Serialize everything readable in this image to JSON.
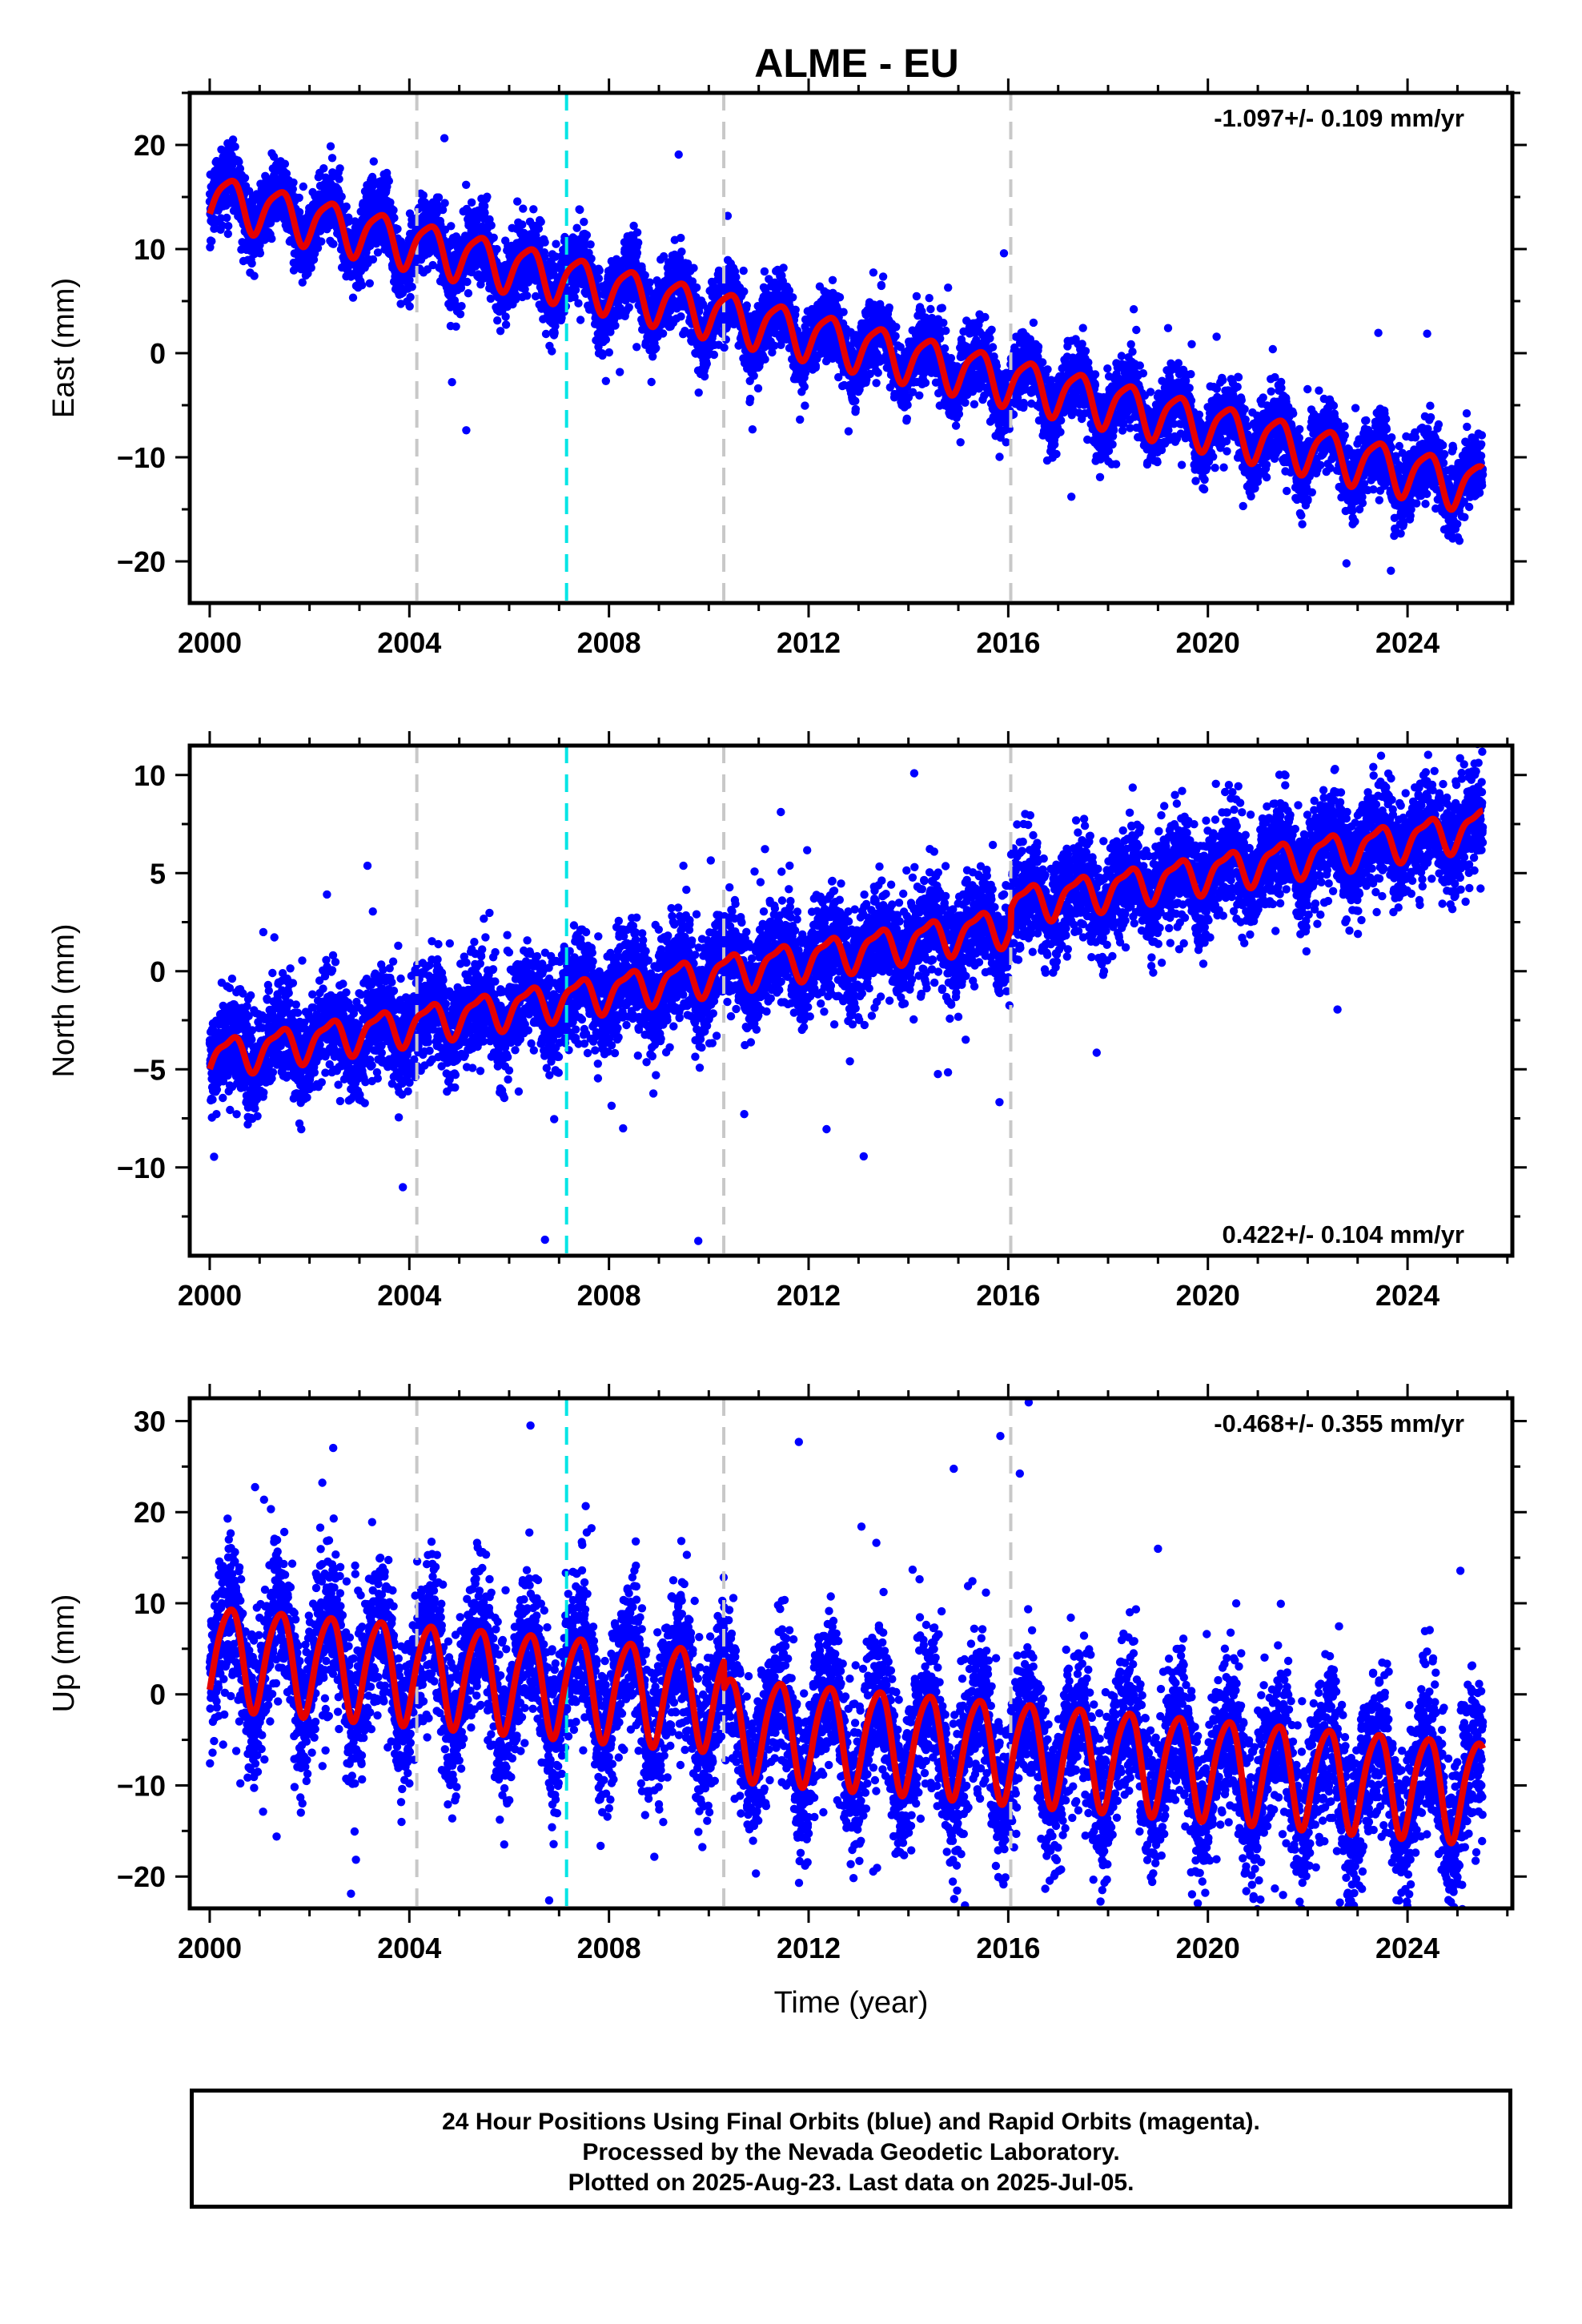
{
  "title": "ALME - EU",
  "colors": {
    "final_orbits": "#0000ff",
    "model_fit": "#e60000",
    "equipment_change": "#c8c8c8",
    "earthquake": "#00e5e5"
  },
  "footer": {
    "line1": "24 Hour Positions Using Final Orbits (blue) and Rapid Orbits (magenta).",
    "line2": "Processed by the Nevada Geodetic Laboratory.",
    "line3": "Plotted on 2025-Aug-23. Last data on 2025-Jul-05."
  },
  "chart_data": [
    {
      "type": "scatter",
      "component": "East",
      "ylabel": "East (mm)",
      "xlabel": "",
      "xlim": [
        1999.6,
        2026.1
      ],
      "ylim": [
        -24,
        25
      ],
      "xticks": [
        2000,
        2004,
        2008,
        2012,
        2016,
        2020,
        2024
      ],
      "yticks": [
        -20,
        -10,
        0,
        10,
        20
      ],
      "rate_label": "-1.097+/- 0.109 mm/yr",
      "rate_position": "top-right",
      "data_range": [
        2000.0,
        2025.51
      ],
      "trend": {
        "offset_at_2000": 15.0,
        "rate_mm_per_yr": -1.097
      },
      "seasonal": {
        "annual_amplitude": 2.3,
        "semiannual_amplitude": 0.5
      },
      "scatter_std": 1.7,
      "equipment_changes": [
        2004.15,
        2010.3,
        2016.05
      ],
      "earthquakes": [
        2007.15
      ],
      "steps": []
    },
    {
      "type": "scatter",
      "component": "North",
      "ylabel": "North (mm)",
      "xlabel": "",
      "xlim": [
        1999.6,
        2026.1
      ],
      "ylim": [
        -14.5,
        11.5
      ],
      "xticks": [
        2000,
        2004,
        2008,
        2012,
        2016,
        2020,
        2024
      ],
      "yticks": [
        -10,
        -5,
        0,
        5,
        10
      ],
      "rate_label": "0.422+/- 0.104 mm/yr",
      "rate_position": "bottom-right",
      "data_range": [
        2000.0,
        2025.51
      ],
      "trend": {
        "offset_at_2000": -4.4,
        "rate_mm_per_yr": 0.422
      },
      "seasonal": {
        "annual_amplitude": 0.9,
        "semiannual_amplitude": 0.3
      },
      "scatter_std": 1.3,
      "equipment_changes": [
        2004.15,
        2010.3,
        2016.05
      ],
      "earthquakes": [
        2007.15
      ],
      "steps": [
        {
          "year": 2016.05,
          "offset": 1.0
        }
      ]
    },
    {
      "type": "scatter",
      "component": "Up",
      "ylabel": "Up (mm)",
      "xlabel": "Time (year)",
      "xlim": [
        1999.6,
        2026.1
      ],
      "ylim": [
        -23.5,
        32.5
      ],
      "xticks": [
        2000,
        2004,
        2008,
        2012,
        2016,
        2020,
        2024
      ],
      "yticks": [
        -20,
        -10,
        0,
        10,
        20,
        30
      ],
      "rate_label": "-0.468+/- 0.355 mm/yr",
      "rate_position": "top-right",
      "data_range": [
        2000.0,
        2025.51
      ],
      "trend": {
        "offset_at_2000": 4.5,
        "rate_mm_per_yr": -0.468
      },
      "seasonal": {
        "annual_amplitude": 5.5,
        "semiannual_amplitude": 0.8
      },
      "scatter_std": 4.2,
      "equipment_changes": [
        2004.15,
        2010.3,
        2016.05
      ],
      "earthquakes": [
        2007.15
      ],
      "steps": [
        {
          "year": 2010.3,
          "offset": -3.0
        }
      ]
    }
  ]
}
